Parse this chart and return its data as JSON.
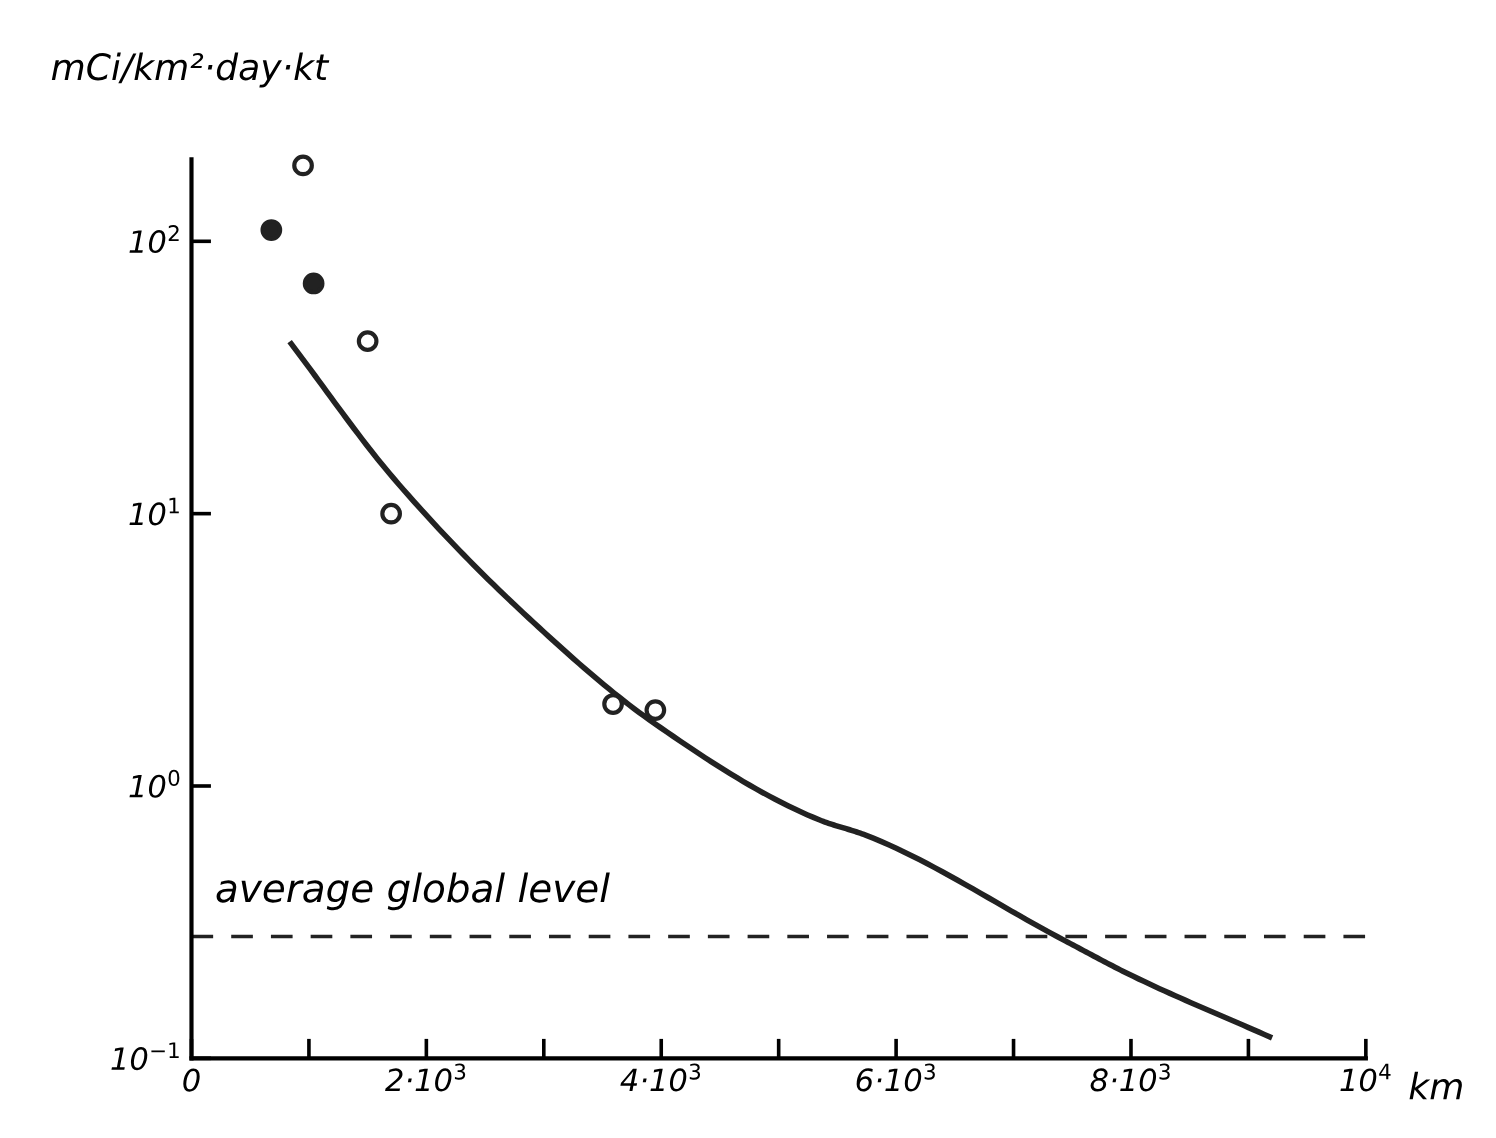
{
  "chart_data": {
    "type": "scatter",
    "ylabel": "mCi/km²·day·kt",
    "xlabel": "km",
    "log": "y",
    "xlim": [
      0,
      10000
    ],
    "ylim": [
      0.1,
      200
    ],
    "xticks": [
      0,
      {
        "value": 1000,
        "label": null
      },
      {
        "value": 2000,
        "label": "2·10$^{3}$"
      },
      {
        "value": 3000,
        "label": null
      },
      {
        "value": 4000,
        "label": "4·10$^{3}$"
      },
      {
        "value": 5000,
        "label": null
      },
      {
        "value": 6000,
        "label": "6·10$^{3}$"
      },
      {
        "value": 7000,
        "label": null
      },
      {
        "value": 8000,
        "label": "8·10$^{3}$"
      },
      {
        "value": 9000,
        "label": null
      },
      {
        "value": 10000,
        "label": "10$^{4}$"
      }
    ],
    "yticks": [
      {
        "value": 0.1,
        "label": "10$^{−1}$"
      },
      {
        "value": 1,
        "label": "10$^{0}$"
      },
      {
        "value": 10,
        "label": "10$^{1}$"
      },
      {
        "value": 100,
        "label": "10$^{2}$"
      }
    ],
    "grid": false,
    "legend": false,
    "marker": "circle",
    "series": [
      {
        "color": "#222222",
        "x": [
          680,
          1040
        ],
        "values": [
          110,
          70
        ]
      },
      {
        "color": "#222222",
        "x": [
          950,
          1500,
          1700,
          3590,
          3950
        ],
        "values": [
          190,
          43,
          10,
          2.0,
          1.9
        ]
      },
      {
        "type": "line",
        "color": "#222222",
        "line_style": "solid",
        "marker": "none",
        "x": [
          850,
          1720,
          2830,
          3940,
          5350,
          5740,
          7440,
          8020,
          9180
        ],
        "values": [
          42,
          13.5,
          4.3,
          1.7,
          0.75,
          0.66,
          0.27,
          0.2,
          0.12
        ]
      }
    ],
    "ref_lines": [
      {
        "axis": "y",
        "value": 0.28,
        "label": "average global level",
        "color": "#222222",
        "line_style": "dashed"
      }
    ]
  }
}
